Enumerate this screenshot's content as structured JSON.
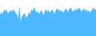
{
  "chart_data": {
    "type": "area",
    "values": [
      22,
      25,
      23,
      27,
      26,
      28,
      25,
      24,
      26,
      27,
      25,
      28,
      26,
      24,
      22,
      18,
      30,
      14,
      20,
      22,
      24,
      21,
      19,
      22,
      25,
      23,
      28,
      26,
      30,
      27,
      24,
      26,
      23,
      25,
      27,
      24,
      22,
      26,
      28,
      25,
      27,
      24,
      26,
      28,
      25,
      23,
      27,
      29,
      26,
      28,
      25,
      27,
      24,
      26,
      29,
      27,
      25,
      28,
      30,
      27,
      25,
      28,
      26,
      29,
      27,
      30,
      28,
      25,
      27,
      29,
      26,
      28,
      25,
      27,
      24,
      26,
      28,
      30,
      27,
      29
    ],
    "color": "#4db8ff",
    "xlim": [
      0,
      79
    ],
    "ylim": [
      0,
      38
    ],
    "tick_labels": false,
    "grid": false
  }
}
